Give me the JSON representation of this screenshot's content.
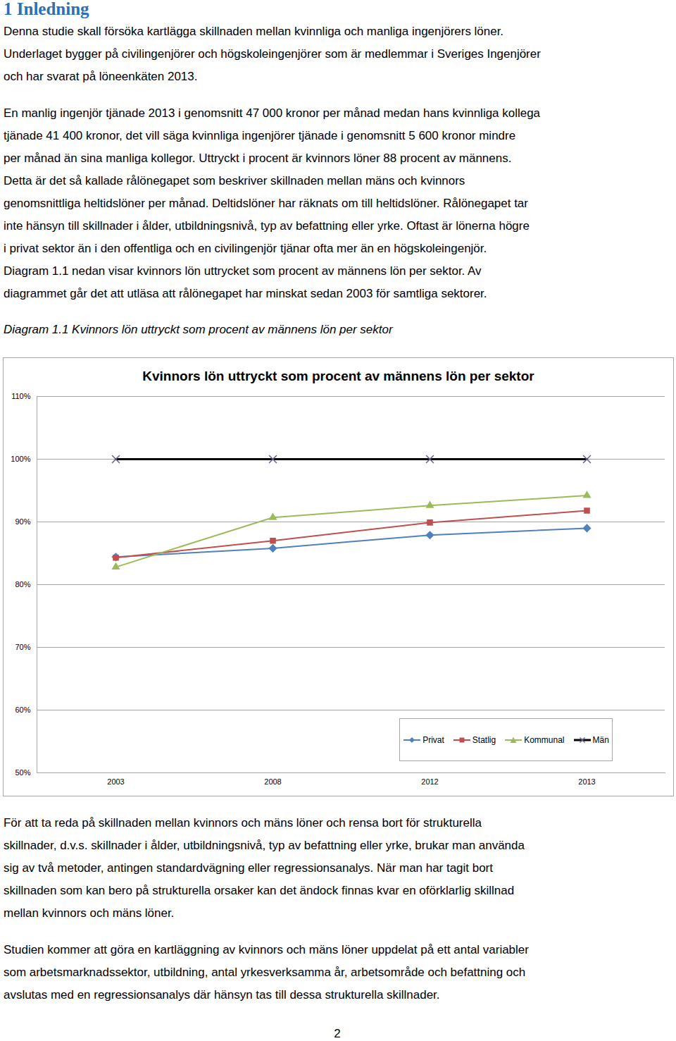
{
  "heading": "1 Inledning",
  "paragraphs_before": [
    [
      "Denna studie skall försöka kartlägga skillnaden mellan kvinnliga och manliga ingenjörers löner.",
      "Underlaget bygger på civilingenjörer och högskoleingenjörer som är medlemmar i Sveriges Ingenjörer",
      "och har svarat på löneenkäten 2013."
    ],
    [
      "En manlig ingenjör tjänade 2013 i genomsnitt 47 000 kronor per månad medan hans kvinnliga kollega",
      "tjänade 41 400 kronor, det vill säga kvinnliga ingenjörer tjänade i genomsnitt 5 600 kronor mindre",
      "per månad än sina manliga kollegor. Uttryckt i procent är kvinnors löner 88 procent av männens.",
      "Detta är det så kallade rålönegapet som beskriver skillnaden mellan mäns och kvinnors",
      "genomsnittliga heltidslöner per månad. Deltidslöner har räknats om till heltidslöner. Rålönegapet tar",
      "inte hänsyn till skillnader i ålder, utbildningsnivå, typ av befattning eller yrke.  Oftast är lönerna högre",
      "i privat sektor än i den offentliga och en civilingenjör tjänar ofta mer än en högskoleingenjör.",
      "Diagram 1.1 nedan visar kvinnors lön uttrycket som procent av männens lön per sektor. Av",
      "diagrammet går det att utläsa att rålönegapet har minskat sedan 2003 för samtliga sektorer."
    ]
  ],
  "caption": "Diagram 1.1 Kvinnors lön uttryckt som procent av männens lön per sektor",
  "chart_data": {
    "type": "line",
    "title": "Kvinnors lön uttryckt som procent av männens lön per sektor",
    "categories": [
      "2003",
      "2008",
      "2012",
      "2013"
    ],
    "series": [
      {
        "name": "Privat",
        "color": "#4F81BD",
        "marker": "diamond",
        "values": [
          84.4,
          85.8,
          87.9,
          89.0
        ]
      },
      {
        "name": "Statlig",
        "color": "#C0504D",
        "marker": "square",
        "values": [
          84.3,
          87.0,
          89.9,
          91.8
        ]
      },
      {
        "name": "Kommunal",
        "color": "#9BBB59",
        "marker": "triangle",
        "values": [
          82.8,
          90.7,
          92.6,
          94.2
        ]
      },
      {
        "name": "Män",
        "color": "#000000",
        "marker": "x",
        "values": [
          100,
          100,
          100,
          100
        ]
      }
    ],
    "ylim": [
      50,
      110
    ],
    "yticks": [
      {
        "value": 50,
        "label": "50%"
      },
      {
        "value": 60,
        "label": "60%"
      },
      {
        "value": 70,
        "label": "70%"
      },
      {
        "value": 80,
        "label": "80%"
      },
      {
        "value": 90,
        "label": "90%"
      },
      {
        "value": 100,
        "label": "100%"
      },
      {
        "value": 110,
        "label": "110%"
      }
    ],
    "grid": true,
    "legend": "lower right"
  },
  "paragraphs_after": [
    [
      "För att ta reda på skillnaden mellan kvinnors och mäns löner och rensa bort för strukturella",
      "skillnader, d.v.s. skillnader i ålder, utbildningsnivå, typ av befattning eller yrke, brukar man använda",
      "sig av två metoder, antingen standardvägning eller regressionsanalys. När man har tagit bort",
      "skillnaden som kan bero på strukturella orsaker kan det ändock finnas kvar en oförklarlig skillnad",
      "mellan kvinnors och mäns löner."
    ],
    [
      "Studien kommer att göra en kartläggning av kvinnors och mäns löner uppdelat på ett antal variabler",
      "som arbetsmarknadssektor, utbildning, antal yrkesverksamma år, arbetsområde och befattning och",
      "avslutas med en regressionsanalys där hänsyn tas till dessa strukturella skillnader."
    ]
  ],
  "page_number": "2"
}
